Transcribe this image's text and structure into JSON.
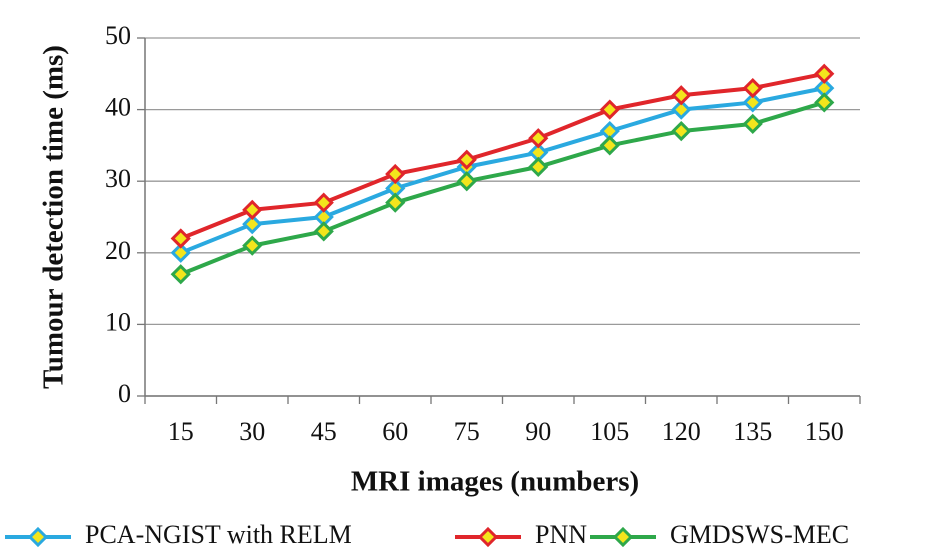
{
  "chart_data": {
    "type": "line",
    "x_label": "MRI images (numbers)",
    "y_label": "Tumour detection time (ms)",
    "categories": [
      15,
      30,
      45,
      60,
      75,
      90,
      105,
      120,
      135,
      150
    ],
    "series": [
      {
        "name": "PCA-NGIST with RELM",
        "color": "#2aa9e0",
        "values": [
          20,
          24,
          25,
          29,
          32,
          34,
          37,
          40,
          41,
          43
        ]
      },
      {
        "name": "PNN",
        "color": "#e0262b",
        "values": [
          22,
          26,
          27,
          31,
          33,
          36,
          40,
          42,
          43,
          45
        ]
      },
      {
        "name": "GMDSWS-MEC",
        "color": "#2ea84a",
        "values": [
          17,
          21,
          23,
          27,
          30,
          32,
          35,
          37,
          38,
          41
        ]
      }
    ],
    "marker_fill": "#f3e51c",
    "ylim": [
      0,
      50
    ],
    "yticks": [
      0,
      10,
      20,
      30,
      40,
      50
    ],
    "grid": true,
    "legend": "bottom"
  }
}
